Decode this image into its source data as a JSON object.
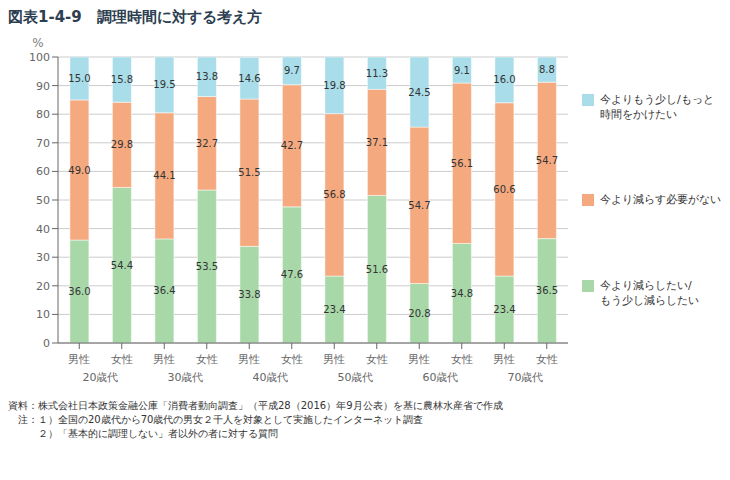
{
  "chart_data": {
    "type": "bar",
    "title": "図表1-4-9　調理時間に対する考え方",
    "categories": [
      "男性",
      "女性",
      "男性",
      "女性",
      "男性",
      "女性",
      "男性",
      "女性",
      "男性",
      "女性",
      "男性",
      "女性"
    ],
    "groups": [
      "20歳代",
      "30歳代",
      "40歳代",
      "50歳代",
      "60歳代",
      "70歳代"
    ],
    "series": [
      {
        "name": "今より減らしたい/\nもう少し減らしたい",
        "color": "#a8d8a8",
        "values": [
          36.0,
          54.4,
          36.4,
          53.5,
          33.8,
          47.6,
          23.4,
          51.6,
          20.8,
          34.8,
          23.4,
          36.5
        ],
        "value_labels": [
          "36.0",
          "54.4",
          "36.4",
          "53.5",
          "33.8",
          "47.6",
          "23.4",
          "51.6",
          "20.8",
          "34.8",
          "23.4",
          "36.5"
        ]
      },
      {
        "name": "今より減らす必要がない",
        "color": "#f5a97f",
        "values": [
          49.0,
          29.8,
          44.1,
          32.7,
          51.5,
          42.7,
          56.8,
          37.1,
          54.7,
          56.1,
          60.6,
          54.7
        ],
        "value_labels": [
          "49.0",
          "29.8",
          "44.1",
          "32.7",
          "51.5",
          "42.7",
          "56.8",
          "37.1",
          "54.7",
          "56.1",
          "60.6",
          "54.7"
        ]
      },
      {
        "name": "今よりもう少し/もっと\n時間をかけたい",
        "color": "#a8dde9",
        "values": [
          15.0,
          15.8,
          19.5,
          13.8,
          14.6,
          9.7,
          19.8,
          11.3,
          24.5,
          9.1,
          16.0,
          8.8
        ],
        "value_labels": [
          "15.0",
          "15.8",
          "19.5",
          "13.8",
          "14.6",
          "9.7",
          "19.8",
          "11.3",
          "24.5",
          "9.1",
          "16.0",
          "8.8"
        ]
      }
    ],
    "y_label": "%",
    "ylim": [
      0,
      100
    ],
    "yticks": [
      0,
      10,
      20,
      30,
      40,
      50,
      60,
      70,
      80,
      90,
      100
    ],
    "stacked": true,
    "data_labels": true,
    "grid": true,
    "legend": "right",
    "footnotes": [
      "資料：株式会社日本政策金融公庫「消費者動向調査」（平成28（2016）年9月公表）を基に農林水産省で作成",
      "　注：１）全国の20歳代から70歳代の男女２千人を対象として実施したインターネット調査",
      "　　　２）「基本的に調理しない」者以外の者に対する質問"
    ]
  }
}
